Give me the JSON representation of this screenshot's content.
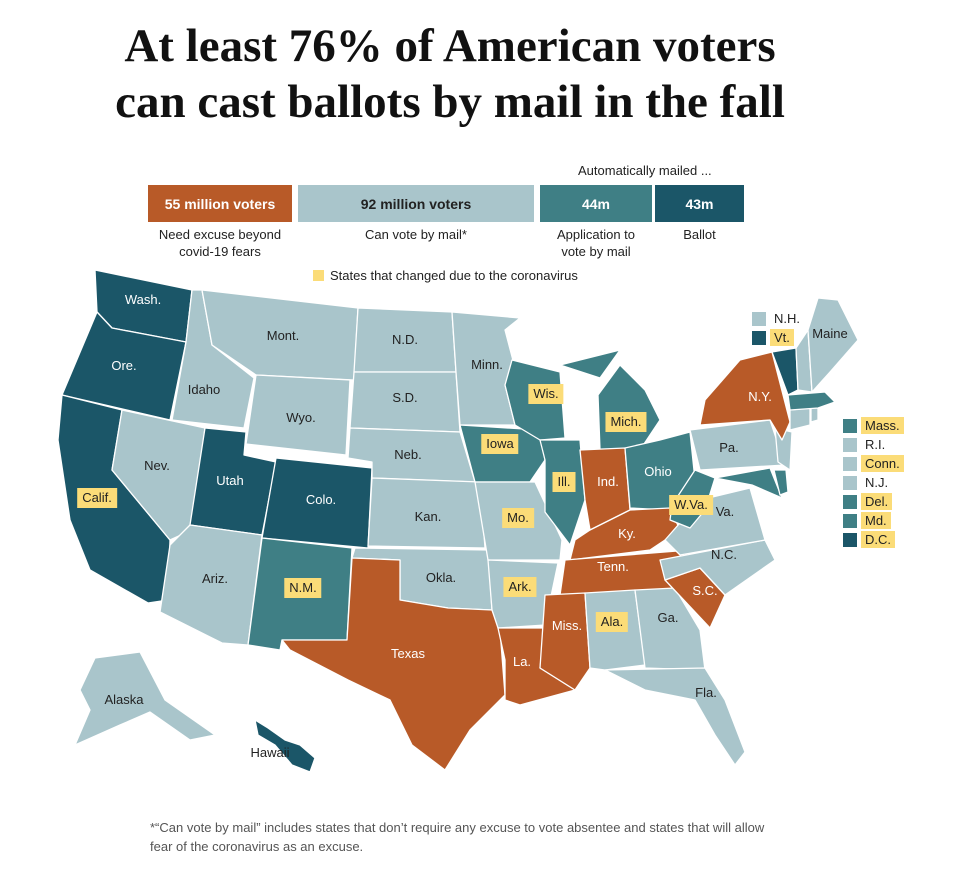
{
  "title_line1": "At least 76% of American voters",
  "title_line2": "can cast ballots by mail in the fall",
  "legend": {
    "auto_mailed_label": "Automatically mailed ...",
    "bars": [
      {
        "label": "55 million voters",
        "caption_line1": "Need excuse beyond",
        "caption_line2": "covid-19 fears",
        "color": "#b85a28"
      },
      {
        "label": "92 million voters",
        "caption_line1": "Can vote by mail*",
        "caption_line2": "",
        "color": "#a9c5cb"
      },
      {
        "label": "44m",
        "caption_line1": "Application to",
        "caption_line2": "vote by mail",
        "color": "#3f7f85"
      },
      {
        "label": "43m",
        "caption_line1": "Ballot",
        "caption_line2": "",
        "color": "#1b5668"
      }
    ],
    "changed_label": "States that changed due to the coronavirus",
    "changed_color": "#fbdc78"
  },
  "categories": {
    "excuse": "#b85a28",
    "can_vote": "#a9c5cb",
    "application": "#3f7f85",
    "ballot": "#1b5668"
  },
  "states": [
    {
      "id": "wa",
      "label": "Wash.",
      "cat": "ballot",
      "changed": false
    },
    {
      "id": "or",
      "label": "Ore.",
      "cat": "ballot",
      "changed": false
    },
    {
      "id": "ca",
      "label": "Calif.",
      "cat": "ballot",
      "changed": true
    },
    {
      "id": "id",
      "label": "Idaho",
      "cat": "can_vote",
      "changed": false
    },
    {
      "id": "nv",
      "label": "Nev.",
      "cat": "can_vote",
      "changed": false
    },
    {
      "id": "mt",
      "label": "Mont.",
      "cat": "can_vote",
      "changed": false
    },
    {
      "id": "wy",
      "label": "Wyo.",
      "cat": "can_vote",
      "changed": false
    },
    {
      "id": "ut",
      "label": "Utah",
      "cat": "ballot",
      "changed": false
    },
    {
      "id": "co",
      "label": "Colo.",
      "cat": "ballot",
      "changed": false
    },
    {
      "id": "az",
      "label": "Ariz.",
      "cat": "can_vote",
      "changed": false
    },
    {
      "id": "nm",
      "label": "N.M.",
      "cat": "application",
      "changed": true
    },
    {
      "id": "nd",
      "label": "N.D.",
      "cat": "can_vote",
      "changed": false
    },
    {
      "id": "sd",
      "label": "S.D.",
      "cat": "can_vote",
      "changed": false
    },
    {
      "id": "ne",
      "label": "Neb.",
      "cat": "can_vote",
      "changed": false
    },
    {
      "id": "ks",
      "label": "Kan.",
      "cat": "can_vote",
      "changed": false
    },
    {
      "id": "ok",
      "label": "Okla.",
      "cat": "can_vote",
      "changed": false
    },
    {
      "id": "tx",
      "label": "Texas",
      "cat": "excuse",
      "changed": false
    },
    {
      "id": "mn",
      "label": "Minn.",
      "cat": "can_vote",
      "changed": false
    },
    {
      "id": "ia",
      "label": "Iowa",
      "cat": "application",
      "changed": true
    },
    {
      "id": "mo",
      "label": "Mo.",
      "cat": "can_vote",
      "changed": true
    },
    {
      "id": "ar",
      "label": "Ark.",
      "cat": "can_vote",
      "changed": true
    },
    {
      "id": "la",
      "label": "La.",
      "cat": "excuse",
      "changed": false
    },
    {
      "id": "wi",
      "label": "Wis.",
      "cat": "application",
      "changed": true
    },
    {
      "id": "il",
      "label": "Ill.",
      "cat": "application",
      "changed": true
    },
    {
      "id": "mi",
      "label": "Mich.",
      "cat": "application",
      "changed": true
    },
    {
      "id": "in",
      "label": "Ind.",
      "cat": "excuse",
      "changed": false
    },
    {
      "id": "oh",
      "label": "Ohio",
      "cat": "application",
      "changed": false
    },
    {
      "id": "ky",
      "label": "Ky.",
      "cat": "excuse",
      "changed": false
    },
    {
      "id": "tn",
      "label": "Tenn.",
      "cat": "excuse",
      "changed": false
    },
    {
      "id": "ms",
      "label": "Miss.",
      "cat": "excuse",
      "changed": false
    },
    {
      "id": "al",
      "label": "Ala.",
      "cat": "can_vote",
      "changed": true
    },
    {
      "id": "ga",
      "label": "Ga.",
      "cat": "can_vote",
      "changed": false
    },
    {
      "id": "fl",
      "label": "Fla.",
      "cat": "can_vote",
      "changed": false
    },
    {
      "id": "sc",
      "label": "S.C.",
      "cat": "excuse",
      "changed": false
    },
    {
      "id": "nc",
      "label": "N.C.",
      "cat": "can_vote",
      "changed": false
    },
    {
      "id": "va",
      "label": "Va.",
      "cat": "can_vote",
      "changed": false
    },
    {
      "id": "wv",
      "label": "W.Va.",
      "cat": "application",
      "changed": true
    },
    {
      "id": "pa",
      "label": "Pa.",
      "cat": "can_vote",
      "changed": false
    },
    {
      "id": "ny",
      "label": "N.Y.",
      "cat": "excuse",
      "changed": false
    },
    {
      "id": "me",
      "label": "Maine",
      "cat": "can_vote",
      "changed": false
    },
    {
      "id": "ak",
      "label": "Alaska",
      "cat": "can_vote",
      "changed": false
    },
    {
      "id": "hi",
      "label": "Hawaii",
      "cat": "ballot",
      "changed": false
    }
  ],
  "northeast_top": [
    {
      "id": "nh",
      "label": "N.H.",
      "cat": "can_vote",
      "changed": false
    },
    {
      "id": "vt",
      "label": "Vt.",
      "cat": "ballot",
      "changed": true
    }
  ],
  "northeast_right": [
    {
      "id": "ma",
      "label": "Mass.",
      "cat": "application",
      "changed": true
    },
    {
      "id": "ri",
      "label": "R.I.",
      "cat": "can_vote",
      "changed": false
    },
    {
      "id": "ct",
      "label": "Conn.",
      "cat": "can_vote",
      "changed": true
    },
    {
      "id": "nj",
      "label": "N.J.",
      "cat": "can_vote",
      "changed": false
    },
    {
      "id": "de",
      "label": "Del.",
      "cat": "application",
      "changed": true
    },
    {
      "id": "md",
      "label": "Md.",
      "cat": "application",
      "changed": true
    },
    {
      "id": "dc",
      "label": "D.C.",
      "cat": "ballot",
      "changed": true
    }
  ],
  "footnote": "*“Can vote by mail” includes states that don’t require any excuse to vote absentee and states that will allow fear of the coronavirus as an excuse."
}
